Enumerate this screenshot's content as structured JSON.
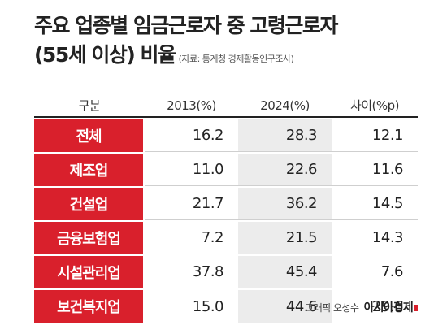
{
  "title_line1": "주요 업종별 임금근로자 중 고령근로자",
  "title_line2": "(55세 이상) 비율",
  "source": "(자료: 통계청 경제활동인구조사)",
  "columns": [
    "구분",
    "2013(%)",
    "2024(%)",
    "차이(%p)"
  ],
  "rows": [
    {
      "label": "전체",
      "v2013": "16.2",
      "v2024": "28.3",
      "diff": "12.1"
    },
    {
      "label": "제조업",
      "v2013": "11.0",
      "v2024": "22.6",
      "diff": "11.6"
    },
    {
      "label": "건설업",
      "v2013": "21.7",
      "v2024": "36.2",
      "diff": "14.5"
    },
    {
      "label": "금융보험업",
      "v2013": "7.2",
      "v2024": "21.5",
      "diff": "14.3"
    },
    {
      "label": "시설관리업",
      "v2013": "37.8",
      "v2024": "45.4",
      "diff": "7.6"
    },
    {
      "label": "보건복지업",
      "v2013": "15.0",
      "v2024": "44.6",
      "diff": "29.6"
    }
  ],
  "credit": "그래픽 오성수",
  "brand": "아시아경제",
  "colors": {
    "accent": "#d9202c",
    "shade": "#ececec"
  },
  "chart_data": {
    "type": "table",
    "title": "주요 업종별 임금근로자 중 고령근로자 (55세 이상) 비율",
    "columns": [
      "구분",
      "2013(%)",
      "2024(%)",
      "차이(%p)"
    ],
    "categories": [
      "전체",
      "제조업",
      "건설업",
      "금융보험업",
      "시설관리업",
      "보건복지업"
    ],
    "series": [
      {
        "name": "2013(%)",
        "values": [
          16.2,
          11.0,
          21.7,
          7.2,
          37.8,
          15.0
        ]
      },
      {
        "name": "2024(%)",
        "values": [
          28.3,
          22.6,
          36.2,
          21.5,
          45.4,
          44.6
        ]
      },
      {
        "name": "차이(%p)",
        "values": [
          12.1,
          11.6,
          14.5,
          14.3,
          7.6,
          29.6
        ]
      }
    ]
  }
}
